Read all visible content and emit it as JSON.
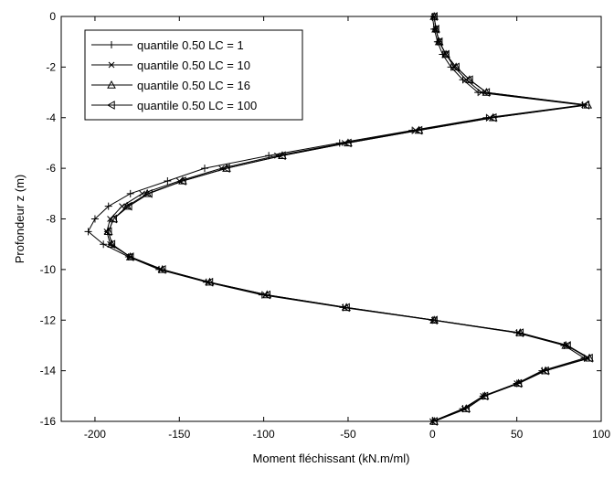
{
  "chart_data": {
    "type": "line",
    "title": "",
    "xlabel": "Moment fléchissant (kN.m/ml)",
    "ylabel": "Profondeur z (m)",
    "xlim": [
      -220,
      100
    ],
    "ylim": [
      -16,
      0
    ],
    "xticks": [
      -200,
      -150,
      -100,
      -50,
      0,
      50,
      100
    ],
    "yticks": [
      0,
      -2,
      -4,
      -6,
      -8,
      -10,
      -12,
      -14,
      -16
    ],
    "grid": false,
    "legend_position": "top-left",
    "line_color": "#000000",
    "series": [
      {
        "name": "quantile 0.50 LC = 1",
        "marker": "plus",
        "points": [
          [
            0,
            0
          ],
          [
            1,
            -0.5
          ],
          [
            3,
            -1
          ],
          [
            6,
            -1.5
          ],
          [
            11,
            -2
          ],
          [
            18,
            -2.5
          ],
          [
            27,
            -3
          ],
          [
            89,
            -3.5
          ],
          [
            32,
            -4
          ],
          [
            -12,
            -4.5
          ],
          [
            -55,
            -5
          ],
          [
            -97,
            -5.5
          ],
          [
            -135,
            -6
          ],
          [
            -157,
            -6.5
          ],
          [
            -179,
            -7
          ],
          [
            -192,
            -7.5
          ],
          [
            -200,
            -8
          ],
          [
            -204,
            -8.5
          ],
          [
            -195,
            -9
          ],
          [
            -180,
            -9.5
          ],
          [
            -162,
            -10
          ],
          [
            -134,
            -10.5
          ],
          [
            -101,
            -11
          ],
          [
            -53,
            -11.5
          ],
          [
            0,
            -12
          ],
          [
            50,
            -12.5
          ],
          [
            78,
            -13
          ],
          [
            90,
            -13.5
          ],
          [
            65,
            -14
          ],
          [
            50,
            -14.5
          ],
          [
            30,
            -15
          ],
          [
            18,
            -15.5
          ],
          [
            0,
            -16
          ]
        ]
      },
      {
        "name": "quantile 0.50 LC = 10",
        "marker": "x",
        "points": [
          [
            1,
            0
          ],
          [
            2,
            -0.5
          ],
          [
            4,
            -1
          ],
          [
            8,
            -1.5
          ],
          [
            13,
            -2
          ],
          [
            20,
            -2.5
          ],
          [
            29,
            -3
          ],
          [
            90,
            -3.5
          ],
          [
            34,
            -4
          ],
          [
            -10,
            -4.5
          ],
          [
            -52,
            -5
          ],
          [
            -92,
            -5.5
          ],
          [
            -125,
            -6
          ],
          [
            -150,
            -6.5
          ],
          [
            -172,
            -7
          ],
          [
            -184,
            -7.5
          ],
          [
            -191,
            -8
          ],
          [
            -193,
            -8.5
          ],
          [
            -191,
            -9
          ],
          [
            -179,
            -9.5
          ],
          [
            -161,
            -10
          ],
          [
            -133,
            -10.5
          ],
          [
            -99,
            -11
          ],
          [
            -52,
            -11.5
          ],
          [
            1,
            -12
          ],
          [
            51,
            -12.5
          ],
          [
            80,
            -13
          ],
          [
            92,
            -13.5
          ],
          [
            66,
            -14
          ],
          [
            50,
            -14.5
          ],
          [
            30,
            -15
          ],
          [
            19,
            -15.5
          ],
          [
            0,
            -16
          ]
        ]
      },
      {
        "name": "quantile 0.50 LC = 16",
        "marker": "triangle-up",
        "points": [
          [
            1,
            0
          ],
          [
            2,
            -0.5
          ],
          [
            4,
            -1
          ],
          [
            8,
            -1.5
          ],
          [
            14,
            -2
          ],
          [
            22,
            -2.5
          ],
          [
            32,
            -3
          ],
          [
            92,
            -3.5
          ],
          [
            36,
            -4
          ],
          [
            -8,
            -4.5
          ],
          [
            -50,
            -5
          ],
          [
            -89,
            -5.5
          ],
          [
            -122,
            -6
          ],
          [
            -148,
            -6.5
          ],
          [
            -169,
            -7
          ],
          [
            -181,
            -7.5
          ],
          [
            -189,
            -8
          ],
          [
            -192,
            -8.5
          ],
          [
            -190,
            -9
          ],
          [
            -179,
            -9.5
          ],
          [
            -160,
            -10
          ],
          [
            -132,
            -10.5
          ],
          [
            -98,
            -11
          ],
          [
            -51,
            -11.5
          ],
          [
            1,
            -12
          ],
          [
            52,
            -12.5
          ],
          [
            79,
            -13
          ],
          [
            93,
            -13.5
          ],
          [
            67,
            -14
          ],
          [
            51,
            -14.5
          ],
          [
            31,
            -15
          ],
          [
            20,
            -15.5
          ],
          [
            1,
            -16
          ]
        ]
      },
      {
        "name": "quantile 0.50 LC = 100",
        "marker": "triangle-left",
        "points": [
          [
            1,
            0
          ],
          [
            2,
            -0.5
          ],
          [
            4,
            -1
          ],
          [
            8,
            -1.5
          ],
          [
            14,
            -2
          ],
          [
            22,
            -2.5
          ],
          [
            32,
            -3
          ],
          [
            91,
            -3.5
          ],
          [
            36,
            -4
          ],
          [
            -8,
            -4.5
          ],
          [
            -50,
            -5
          ],
          [
            -89,
            -5.5
          ],
          [
            -122,
            -6
          ],
          [
            -148,
            -6.5
          ],
          [
            -168,
            -7
          ],
          [
            -180,
            -7.5
          ],
          [
            -189,
            -8
          ],
          [
            -192,
            -8.5
          ],
          [
            -190,
            -9
          ],
          [
            -179,
            -9.5
          ],
          [
            -160,
            -10
          ],
          [
            -132,
            -10.5
          ],
          [
            -98,
            -11
          ],
          [
            -51,
            -11.5
          ],
          [
            1,
            -12
          ],
          [
            52,
            -12.5
          ],
          [
            80,
            -13
          ],
          [
            93,
            -13.5
          ],
          [
            67,
            -14
          ],
          [
            51,
            -14.5
          ],
          [
            31,
            -15
          ],
          [
            20,
            -15.5
          ],
          [
            1,
            -16
          ]
        ]
      }
    ]
  }
}
